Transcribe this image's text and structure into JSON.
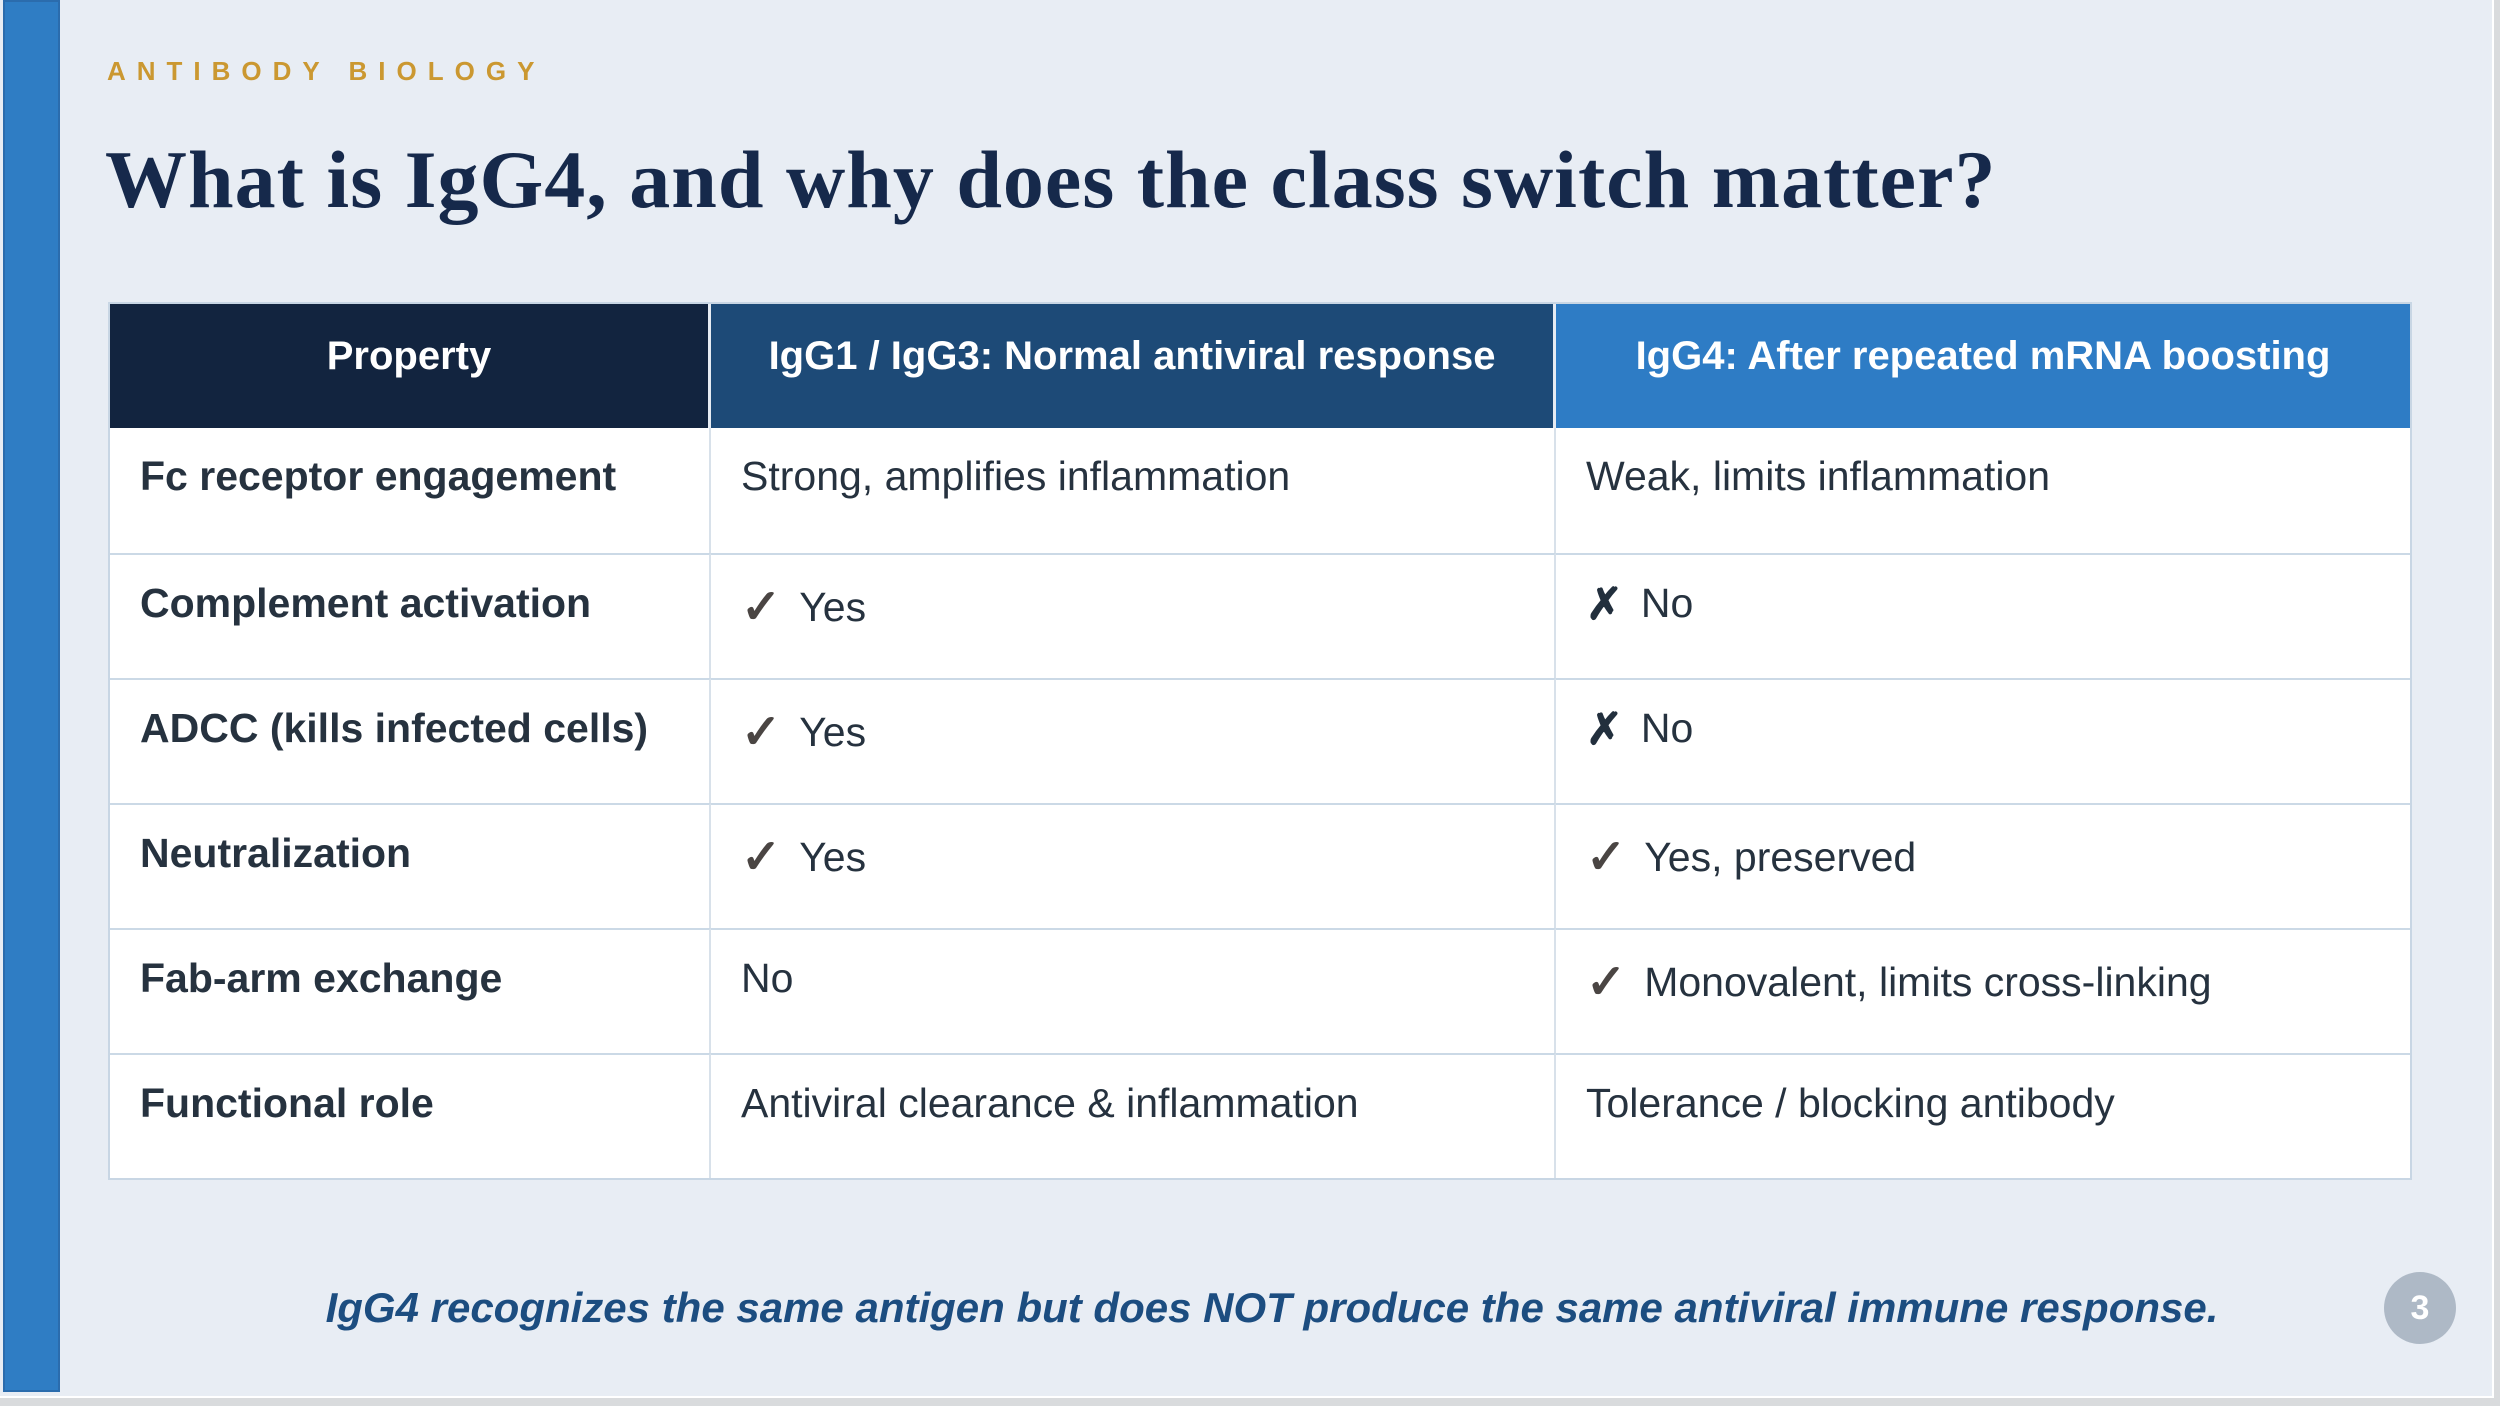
{
  "slide": {
    "eyebrow": "ANTIBODY BIOLOGY",
    "title": "What is IgG4, and why does the class switch matter?",
    "footer_note": "IgG4 recognizes the same antigen but does NOT produce the same antiviral immune response.",
    "page_number": "3"
  },
  "colors": {
    "background": "#e8edf4",
    "accent_bar": "#2f7dc4",
    "header_property": "#12243f",
    "header_igg1": "#1d4a77",
    "header_igg4": "#2e7cc5",
    "eyebrow_text": "#cb9831",
    "title_text": "#16294b",
    "body_text": "#26323f",
    "check_icon": "#4a4543",
    "cross_icon": "#222f3d",
    "footer_note_text": "#1c4d80",
    "page_badge": "#aeb9c6"
  },
  "table": {
    "icons": {
      "check": "✓",
      "cross": "✗"
    },
    "columns": [
      "Property",
      "IgG1 / IgG3: Normal antiviral response",
      "IgG4: After repeated mRNA boosting"
    ],
    "rows": [
      {
        "property": "Fc receptor engagement",
        "igg1_icon": "none",
        "igg1_text": "Strong, amplifies inflammation",
        "igg4_icon": "none",
        "igg4_text": "Weak, limits inflammation"
      },
      {
        "property": "Complement activation",
        "igg1_icon": "check",
        "igg1_text": "Yes",
        "igg4_icon": "cross",
        "igg4_text": "No"
      },
      {
        "property": "ADCC (kills infected cells)",
        "igg1_icon": "check",
        "igg1_text": "Yes",
        "igg4_icon": "cross",
        "igg4_text": "No"
      },
      {
        "property": "Neutralization",
        "igg1_icon": "check",
        "igg1_text": "Yes",
        "igg4_icon": "check",
        "igg4_text": "Yes, preserved"
      },
      {
        "property": "Fab-arm exchange",
        "igg1_icon": "none",
        "igg1_text": "No",
        "igg4_icon": "check",
        "igg4_text": "Monovalent, limits cross-linking"
      },
      {
        "property": "Functional role",
        "igg1_icon": "none",
        "igg1_text": "Antiviral clearance & inflammation",
        "igg4_icon": "none",
        "igg4_text": "Tolerance / blocking antibody"
      }
    ]
  }
}
